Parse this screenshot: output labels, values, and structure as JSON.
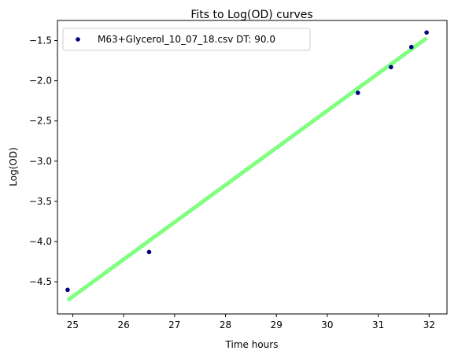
{
  "chart_data": {
    "type": "scatter",
    "title": "Fits to Log(OD) curves",
    "xlabel": "Time hours",
    "ylabel": "Log(OD)",
    "xlim": [
      24.7,
      32.35
    ],
    "ylim": [
      -4.9,
      -1.25
    ],
    "x_ticks": [
      25,
      26,
      27,
      28,
      29,
      30,
      31,
      32
    ],
    "x_tick_labels": [
      "25",
      "26",
      "27",
      "28",
      "29",
      "30",
      "31",
      "32"
    ],
    "y_ticks": [
      -4.5,
      -4.0,
      -3.5,
      -3.0,
      -2.5,
      -2.0,
      -1.5
    ],
    "y_tick_labels": [
      "−4.5",
      "−4.0",
      "−3.5",
      "−3.0",
      "−2.5",
      "−2.0",
      "−1.5"
    ],
    "grid": false,
    "legend_position": "top-left",
    "series": [
      {
        "name": "M63+Glycerol_10_07_18.csv DT: 90.0",
        "kind": "scatter",
        "color": "#00007f",
        "x": [
          24.9,
          26.5,
          30.6,
          31.25,
          31.65,
          31.95
        ],
        "y": [
          -4.6,
          -4.13,
          -2.15,
          -1.83,
          -1.58,
          -1.4
        ]
      },
      {
        "kind": "line",
        "color": "#80ff80",
        "x": [
          24.9,
          31.95
        ],
        "y": [
          -4.73,
          -1.47
        ]
      }
    ]
  }
}
